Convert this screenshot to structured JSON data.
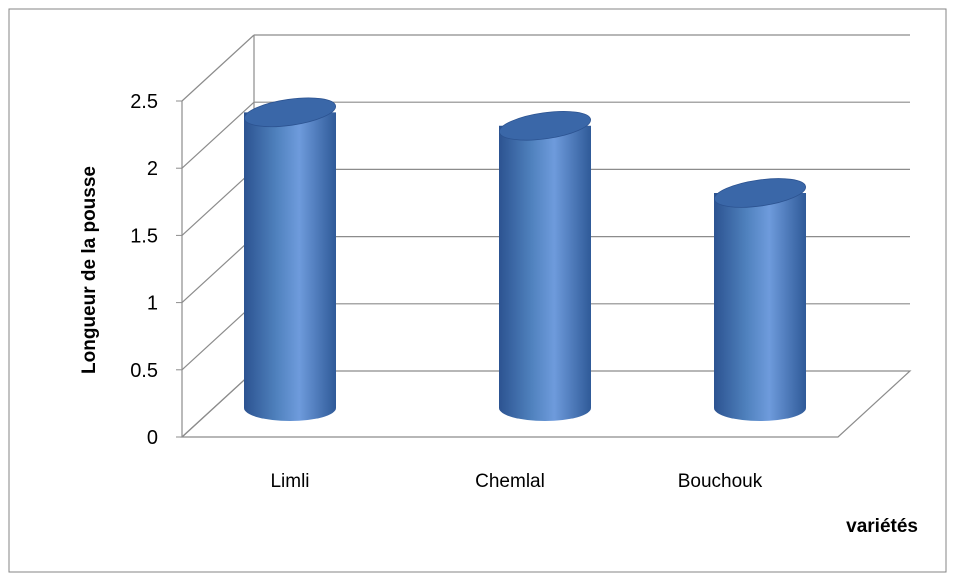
{
  "chart_data": {
    "type": "bar",
    "style": "3d-cylinder",
    "categories": [
      "Limli",
      "Chemlal",
      "Bouchouk"
    ],
    "values": [
      2.2,
      2.1,
      1.6
    ],
    "xlabel": "variétés",
    "ylabel": "Longueur de la pousse",
    "ylim": [
      0,
      2.5
    ],
    "yticks": [
      "0",
      "0.5",
      "1",
      "1.5",
      "2",
      "2.5"
    ],
    "grid": true,
    "legend": "none",
    "colors": {
      "bar_light": "#6e9bdc",
      "bar_mid": "#4f81bd",
      "bar_dark": "#2c5391",
      "bar_top": "#3a67a8",
      "grid": "#8c8c8c",
      "border": "#868686"
    }
  }
}
